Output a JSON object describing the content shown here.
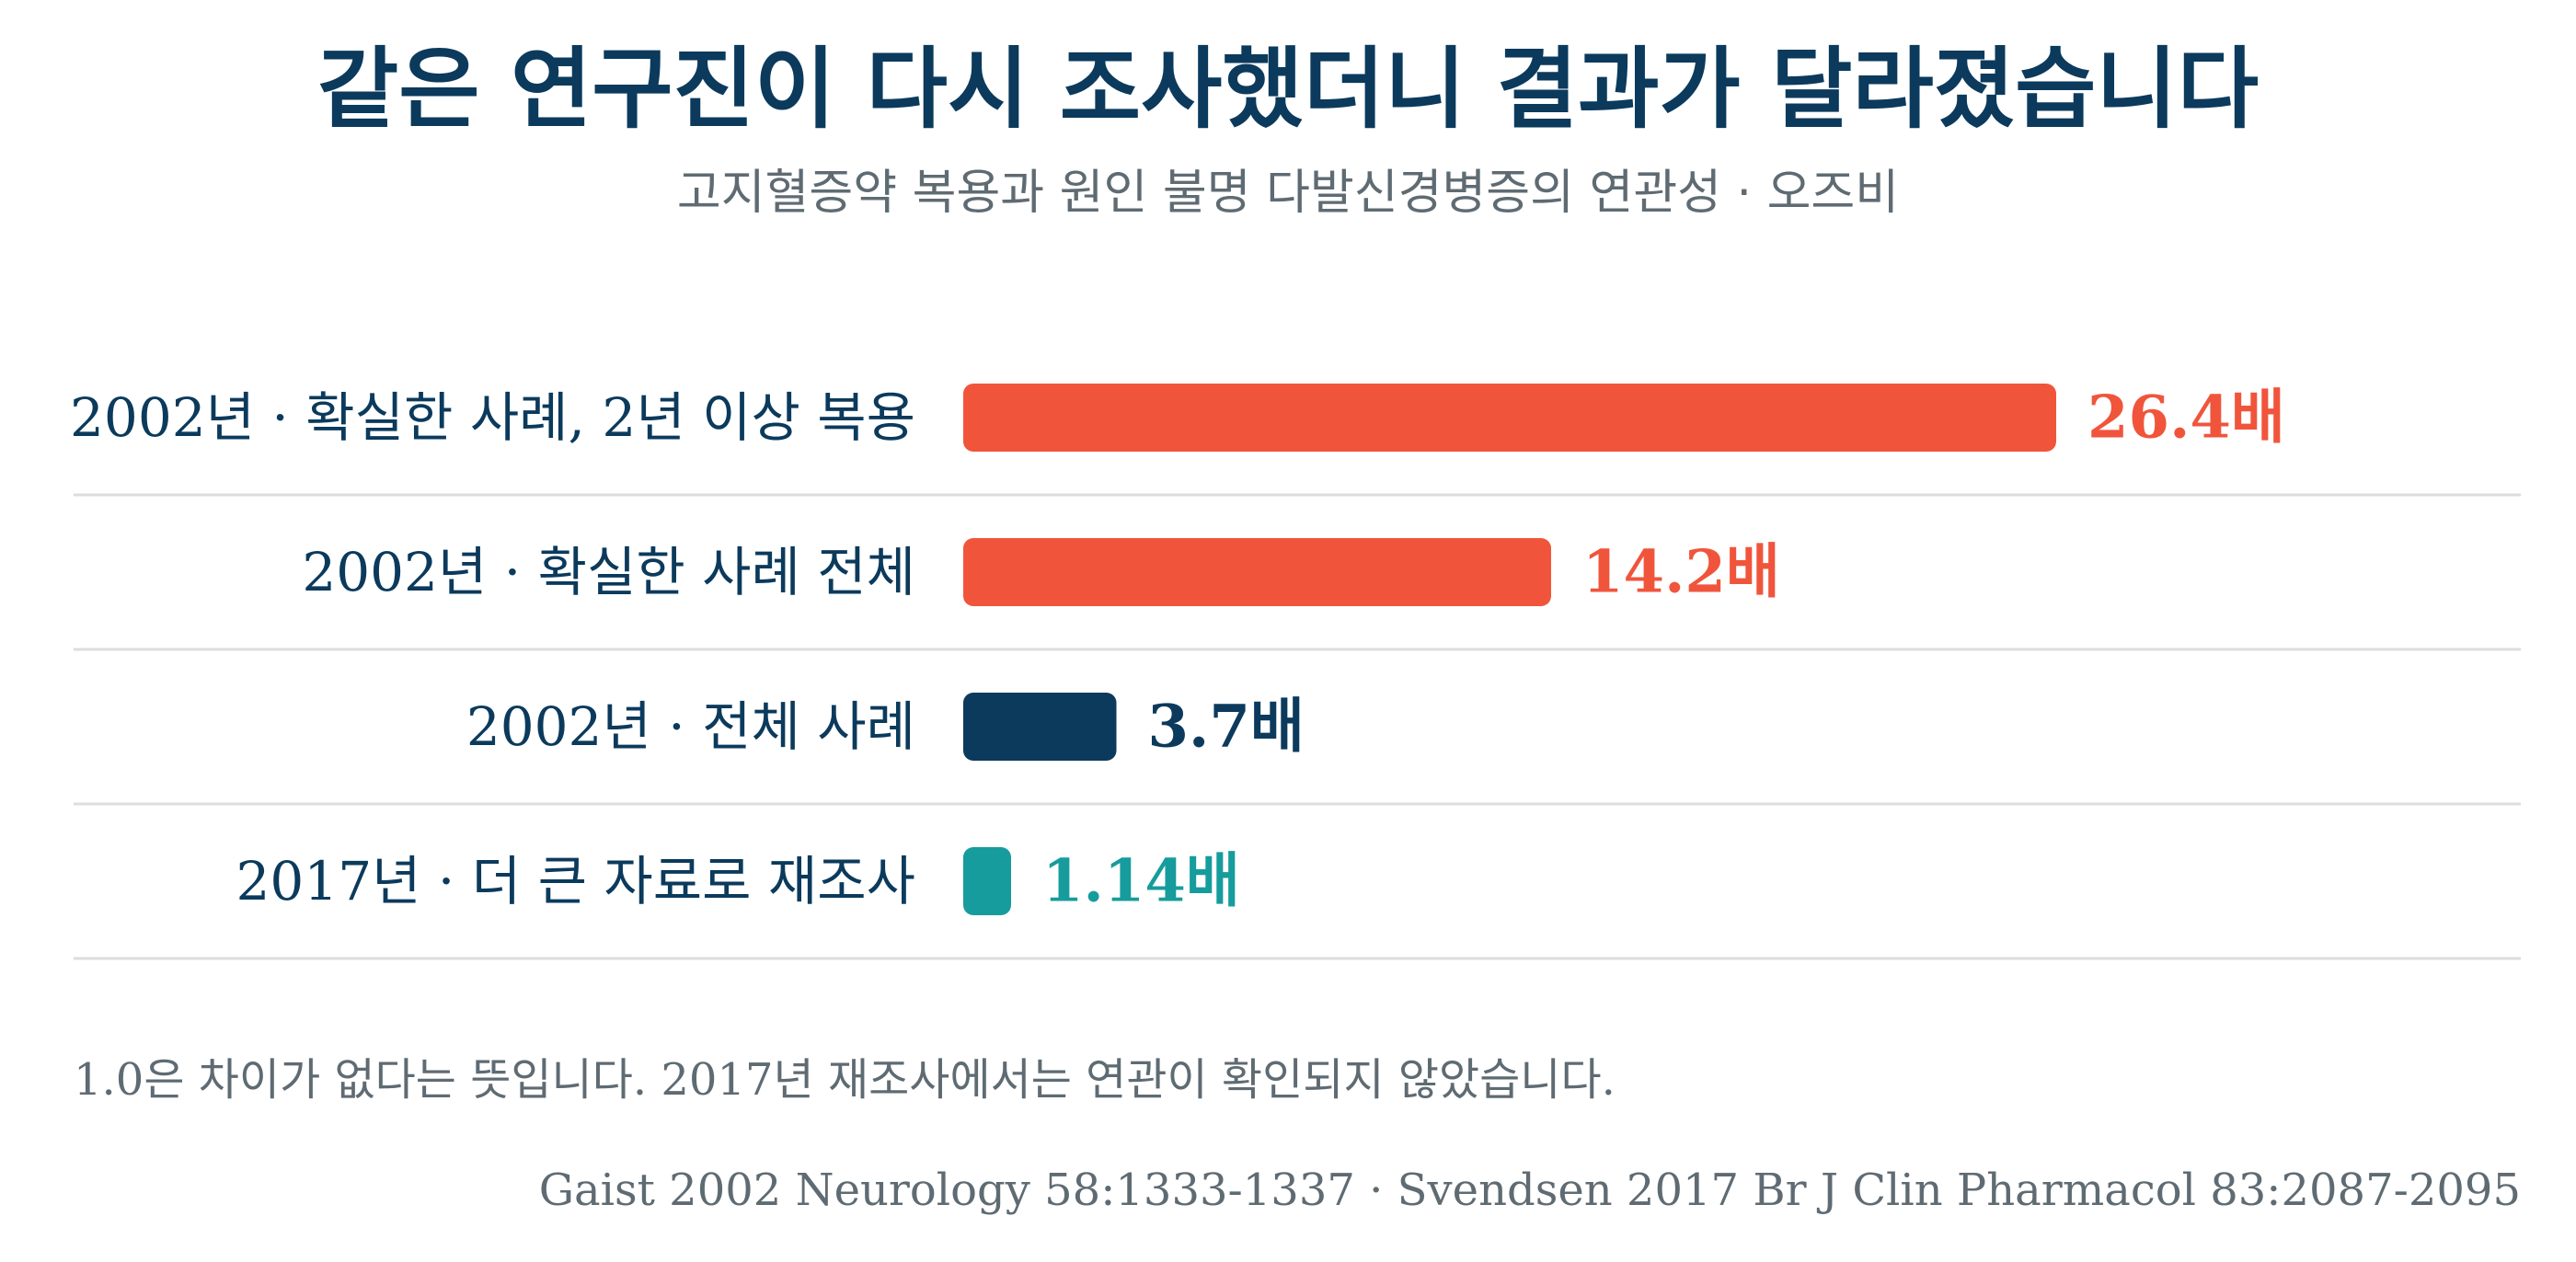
{
  "chart_data": {
    "type": "bar",
    "orientation": "horizontal",
    "title": "같은 연구진이 다시 조사했더니 결과가 달라졌습니다",
    "subtitle": "고지혈증약 복용과 원인 불명 다발신경병증의 연관성 · 오즈비",
    "categories": [
      "2002년 · 확실한 사례, 2년 이상 복용",
      "2002년 · 확실한 사례 전체",
      "2002년 · 전체 사례",
      "2017년 · 더 큰 자료로 재조사"
    ],
    "values": [
      26.4,
      14.2,
      3.7,
      1.14
    ],
    "value_labels": [
      "26.4배",
      "14.2배",
      "3.7배",
      "1.14배"
    ],
    "bar_colors": [
      "#f0553c",
      "#f0553c",
      "#0b3a5c",
      "#169c9c"
    ],
    "xlim": [
      0,
      26.4
    ],
    "grid": false,
    "legend": "none",
    "note": "1.0은 차이가 없다는 뜻입니다. 2017년 재조사에서는 연관이 확인되지 않았습니다.",
    "source": "Gaist 2002 Neurology 58:1333-1337 · Svendsen 2017 Br J Clin Pharmacol 83:2087-2095"
  },
  "colors": {
    "title": "#0b3a5c",
    "subtitle": "#5f6b73",
    "category_label": "#0b3a5c",
    "divider": "#dddddd",
    "note": "#5f6b73",
    "source": "#5f6b73"
  }
}
